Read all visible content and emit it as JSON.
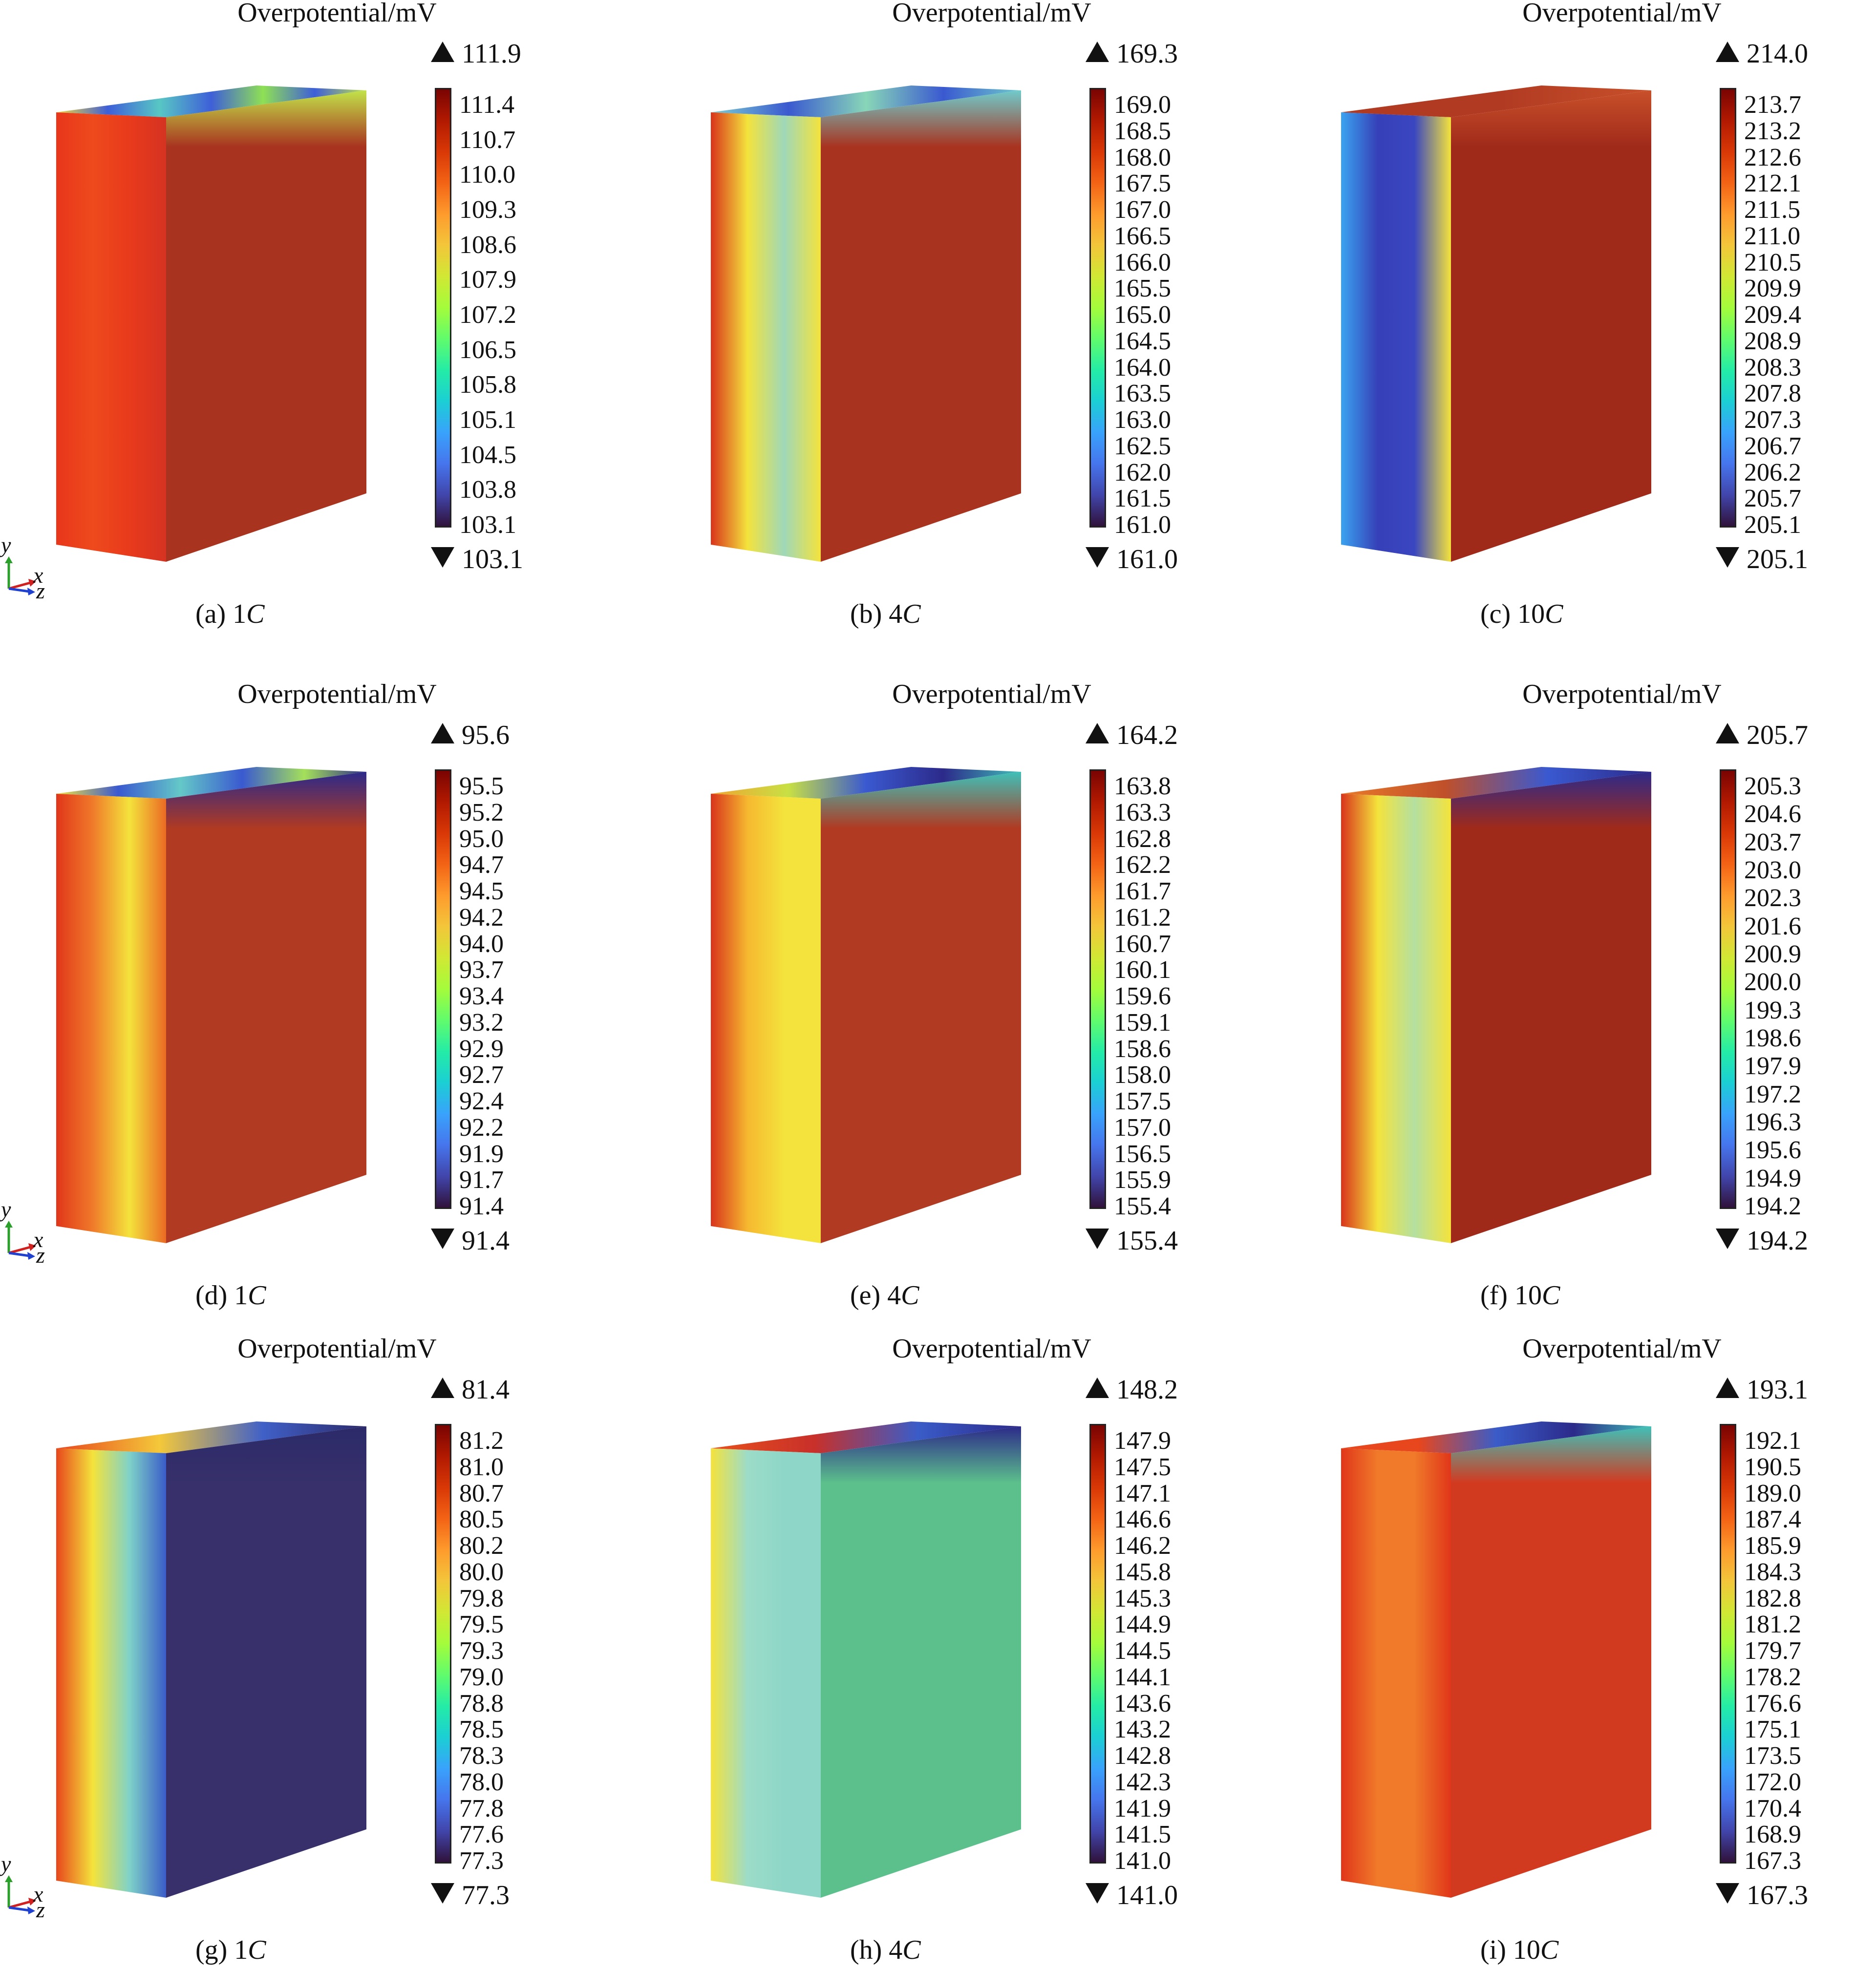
{
  "colorbar_colors": [
    "#30123b",
    "#4145ab",
    "#4675ed",
    "#39a2fc",
    "#1bcfd4",
    "#24eca6",
    "#61fc6c",
    "#a4fc3b",
    "#d1e834",
    "#f3c63a",
    "#fe9b2d",
    "#f36315",
    "#d93806",
    "#b11901",
    "#7a0402"
  ],
  "panels": [
    {
      "id": "a",
      "title": "Overpotential/mV",
      "max": "111.9",
      "min": "103.1",
      "caption_letter": "(a) 1",
      "caption_unit": "C",
      "ticks": [
        "111.4",
        "110.7",
        "110.0",
        "109.3",
        "108.6",
        "107.9",
        "107.2",
        "106.5",
        "105.8",
        "105.1",
        "104.5",
        "103.8",
        "103.1"
      ],
      "faces": {
        "front": [
          "#e8361b",
          "#ee4a1d",
          "#e83a1c",
          "#d53322"
        ],
        "side": "#a8331f",
        "top": [
          "#f4d83a",
          "#3e5fd8",
          "#58c7c4",
          "#3e5fd8",
          "#8fe055",
          "#3e5fd8",
          "#c2e34a"
        ]
      }
    },
    {
      "id": "b",
      "title": "Overpotential/mV",
      "max": "169.3",
      "min": "161.0",
      "caption_letter": "(b) 4",
      "caption_unit": "C",
      "ticks": [
        "169.0",
        "168.5",
        "168.0",
        "167.5",
        "167.0",
        "166.5",
        "166.0",
        "165.5",
        "165.0",
        "164.5",
        "164.0",
        "163.5",
        "163.0",
        "162.5",
        "162.0",
        "161.5",
        "161.0"
      ],
      "faces": {
        "front": [
          "#d8341b",
          "#f4e33c",
          "#9fd8b8",
          "#f4e33c"
        ],
        "side": "#a8331f",
        "top": [
          "#7ccfd2",
          "#3a59d0",
          "#88d6b8",
          "#3a59d0",
          "#6fcbcc"
        ]
      }
    },
    {
      "id": "c",
      "title": "Overpotential/mV",
      "max": "214.0",
      "min": "205.1",
      "caption_letter": "(c) 10",
      "caption_unit": "C",
      "ticks": [
        "213.7",
        "213.2",
        "212.6",
        "212.1",
        "211.5",
        "211.0",
        "210.5",
        "209.9",
        "209.4",
        "208.9",
        "208.3",
        "207.8",
        "207.3",
        "206.7",
        "206.2",
        "205.7",
        "205.1"
      ],
      "faces": {
        "front": [
          "#3aa3f0",
          "#3640b8",
          "#3a46c0",
          "#f4e33c"
        ],
        "side": "#a02a1a",
        "top": [
          "#b03a22",
          "#b03a22",
          "#c8502a"
        ]
      }
    },
    {
      "id": "d",
      "title": "Overpotential/mV",
      "max": "95.6",
      "min": "91.4",
      "caption_letter": "(d) 1",
      "caption_unit": "C",
      "ticks": [
        "95.5",
        "95.2",
        "95.0",
        "94.7",
        "94.5",
        "94.2",
        "94.0",
        "93.7",
        "93.4",
        "93.2",
        "92.9",
        "92.7",
        "92.4",
        "92.2",
        "91.9",
        "91.7",
        "91.4"
      ],
      "faces": {
        "front": [
          "#e0361a",
          "#f07a2a",
          "#f4e33c",
          "#ea6a24"
        ],
        "side": "#b03a22",
        "top": [
          "#f4e33c",
          "#3a59d0",
          "#64c8c8",
          "#3a59d0",
          "#a4e05a",
          "#2c2a8a"
        ]
      }
    },
    {
      "id": "e",
      "title": "Overpotential/mV",
      "max": "164.2",
      "min": "155.4",
      "caption_letter": "(e) 4",
      "caption_unit": "C",
      "ticks": [
        "163.8",
        "163.3",
        "162.8",
        "162.2",
        "161.7",
        "161.2",
        "160.7",
        "160.1",
        "159.6",
        "159.1",
        "158.6",
        "158.0",
        "157.5",
        "157.0",
        "156.5",
        "155.9",
        "155.4"
      ],
      "faces": {
        "front": [
          "#d8341b",
          "#f6b830",
          "#f4e33c",
          "#f4e33c"
        ],
        "side": "#b03a22",
        "top": [
          "#f0a430",
          "#c8e044",
          "#3a59d0",
          "#2c2a8a",
          "#3fc0b8"
        ]
      }
    },
    {
      "id": "f",
      "title": "Overpotential/mV",
      "max": "205.7",
      "min": "194.2",
      "caption_letter": "(f) 10",
      "caption_unit": "C",
      "ticks": [
        "205.3",
        "204.6",
        "203.7",
        "203.0",
        "202.3",
        "201.6",
        "200.9",
        "200.0",
        "199.3",
        "198.6",
        "197.9",
        "197.2",
        "196.3",
        "195.6",
        "194.9",
        "194.2"
      ],
      "faces": {
        "front": [
          "#d8341b",
          "#f4e33c",
          "#b4e0a0",
          "#f4e33c"
        ],
        "side": "#a02a1a",
        "top": [
          "#e87a2a",
          "#c0502a",
          "#3a59d0",
          "#2c2a8a"
        ]
      }
    },
    {
      "id": "g",
      "title": "Overpotential/mV",
      "max": "81.4",
      "min": "77.3",
      "caption_letter": "(g) 1",
      "caption_unit": "C",
      "ticks": [
        "81.2",
        "81.0",
        "80.7",
        "80.5",
        "80.2",
        "80.0",
        "79.8",
        "79.5",
        "79.3",
        "79.0",
        "78.8",
        "78.5",
        "78.3",
        "78.0",
        "77.8",
        "77.6",
        "77.3"
      ],
      "faces": {
        "front": [
          "#e8461c",
          "#f4e33c",
          "#7fd2c8",
          "#3a5cc8"
        ],
        "side": "#37306a",
        "top": [
          "#e8461c",
          "#f4c83a",
          "#4060c8",
          "#2c2a6a"
        ]
      }
    },
    {
      "id": "h",
      "title": "Overpotential/mV",
      "max": "148.2",
      "min": "141.0",
      "caption_letter": "(h) 4",
      "caption_unit": "C",
      "ticks": [
        "147.9",
        "147.5",
        "147.1",
        "146.6",
        "146.2",
        "145.8",
        "145.3",
        "144.9",
        "144.5",
        "144.1",
        "143.6",
        "143.2",
        "142.8",
        "142.3",
        "141.9",
        "141.5",
        "141.0"
      ],
      "faces": {
        "front": [
          "#f4e33c",
          "#9cdcc8",
          "#8ed6c8",
          "#8ed6c8"
        ],
        "side": "#5cc08c",
        "top": [
          "#e8501c",
          "#c8302a",
          "#3a5cc8",
          "#2c2a8a"
        ]
      }
    },
    {
      "id": "i",
      "title": "Overpotential/mV",
      "max": "193.1",
      "min": "167.3",
      "caption_letter": "(i) 10",
      "caption_unit": "C",
      "ticks": [
        "192.1",
        "190.5",
        "189.0",
        "187.4",
        "185.9",
        "184.3",
        "182.8",
        "181.2",
        "179.7",
        "178.2",
        "176.6",
        "175.1",
        "173.5",
        "172.0",
        "170.4",
        "168.9",
        "167.3"
      ],
      "faces": {
        "front": [
          "#e0361a",
          "#f07a2a",
          "#f07a2a",
          "#e0361a"
        ],
        "side": "#d23a20",
        "top": [
          "#e8461c",
          "#e8461c",
          "#3a5cc8",
          "#2c2a8a",
          "#3fc0b8"
        ]
      }
    }
  ],
  "axis_labels": {
    "y": "y",
    "x": "x",
    "z": "z"
  }
}
